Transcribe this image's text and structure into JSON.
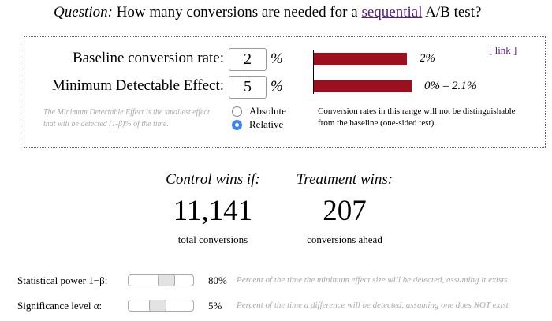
{
  "header": {
    "label": "Question:",
    "text_before": "How many conversions are needed for a",
    "link": "sequential",
    "text_after": "A/B test?"
  },
  "inputs": {
    "baseline": {
      "label": "Baseline conversion rate:",
      "value": "2",
      "unit": "%",
      "result": "2%"
    },
    "mde": {
      "label": "Minimum Detectable Effect:",
      "value": "5",
      "unit": "%",
      "result": "0% – 2.1%"
    },
    "link": "[ link ]",
    "mde_note": "The Minimum Detectable Effect is the smallest effect that will be detected (1-β)% of the time.",
    "options": [
      "Absolute",
      "Relative"
    ],
    "range_note": "Conversion rates in this range will not be distinguishable from the baseline (one-sided test)."
  },
  "results": [
    {
      "heading": "Control wins if:",
      "value": "11,141",
      "caption": "total conversions"
    },
    {
      "heading": "Treatment wins:",
      "value": "207",
      "caption": "conversions ahead"
    }
  ],
  "settings": [
    {
      "label": "Statistical power 1−β:",
      "value": "80%",
      "description": "Percent of the time the minimum effect size will be detected, assuming it exists"
    },
    {
      "label": "Significance level α:",
      "value": "5%",
      "description": "Percent of the time a difference will be detected, assuming one does NOT exist"
    }
  ]
}
